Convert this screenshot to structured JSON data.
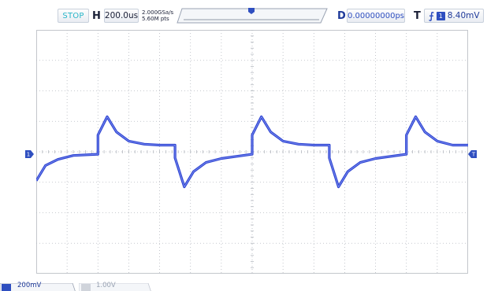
{
  "toolbar": {
    "run_state": "STOP",
    "horizontal_label": "H",
    "timebase": "200.0us",
    "sample_rate": "2.000GSa/s",
    "memory_depth": "5.60M pts",
    "delay_label": "D",
    "delay_value": "0.00000000ps",
    "trigger_label": "T",
    "trigger_edge_icon": "rising-edge-icon",
    "trigger_source": "1",
    "trigger_level": "8.40mV"
  },
  "channel_marker": "1",
  "trigger_marker": "T",
  "bottom": {
    "ch1_scale": "200mV",
    "ch2_scale": "1.00V"
  },
  "colors": {
    "trace": "#2a40d0",
    "grid": "#b5b9c0",
    "accent": "#2f4fc0",
    "stop_text": "#28b6c8"
  },
  "chart_data": {
    "type": "line",
    "grid": true,
    "divisions_x": 14,
    "divisions_y": 8,
    "series": [
      {
        "x": [
          0,
          0.3,
          0.7,
          1.2,
          2.0,
          2.0,
          2.3,
          2.6,
          3.0,
          3.5,
          4.0,
          4.5,
          4.5,
          4.8,
          5.1,
          5.5,
          6.0,
          7.0,
          7.0,
          7.3,
          7.6,
          8.0,
          8.5,
          9.0,
          9.5,
          9.5,
          9.8,
          10.1,
          10.5,
          11.0,
          12.0,
          12.0,
          12.3,
          12.6,
          13.0,
          13.5,
          14.0
        ],
        "y": [
          -0.95,
          -0.45,
          -0.25,
          -0.12,
          -0.08,
          0.55,
          1.15,
          0.65,
          0.35,
          0.25,
          0.22,
          0.22,
          -0.2,
          -1.15,
          -0.65,
          -0.35,
          -0.22,
          -0.08,
          0.55,
          1.15,
          0.65,
          0.35,
          0.25,
          0.22,
          0.22,
          -0.2,
          -1.15,
          -0.65,
          -0.35,
          -0.22,
          -0.08,
          0.55,
          1.15,
          0.65,
          0.35,
          0.22,
          0.22
        ]
      }
    ]
  }
}
